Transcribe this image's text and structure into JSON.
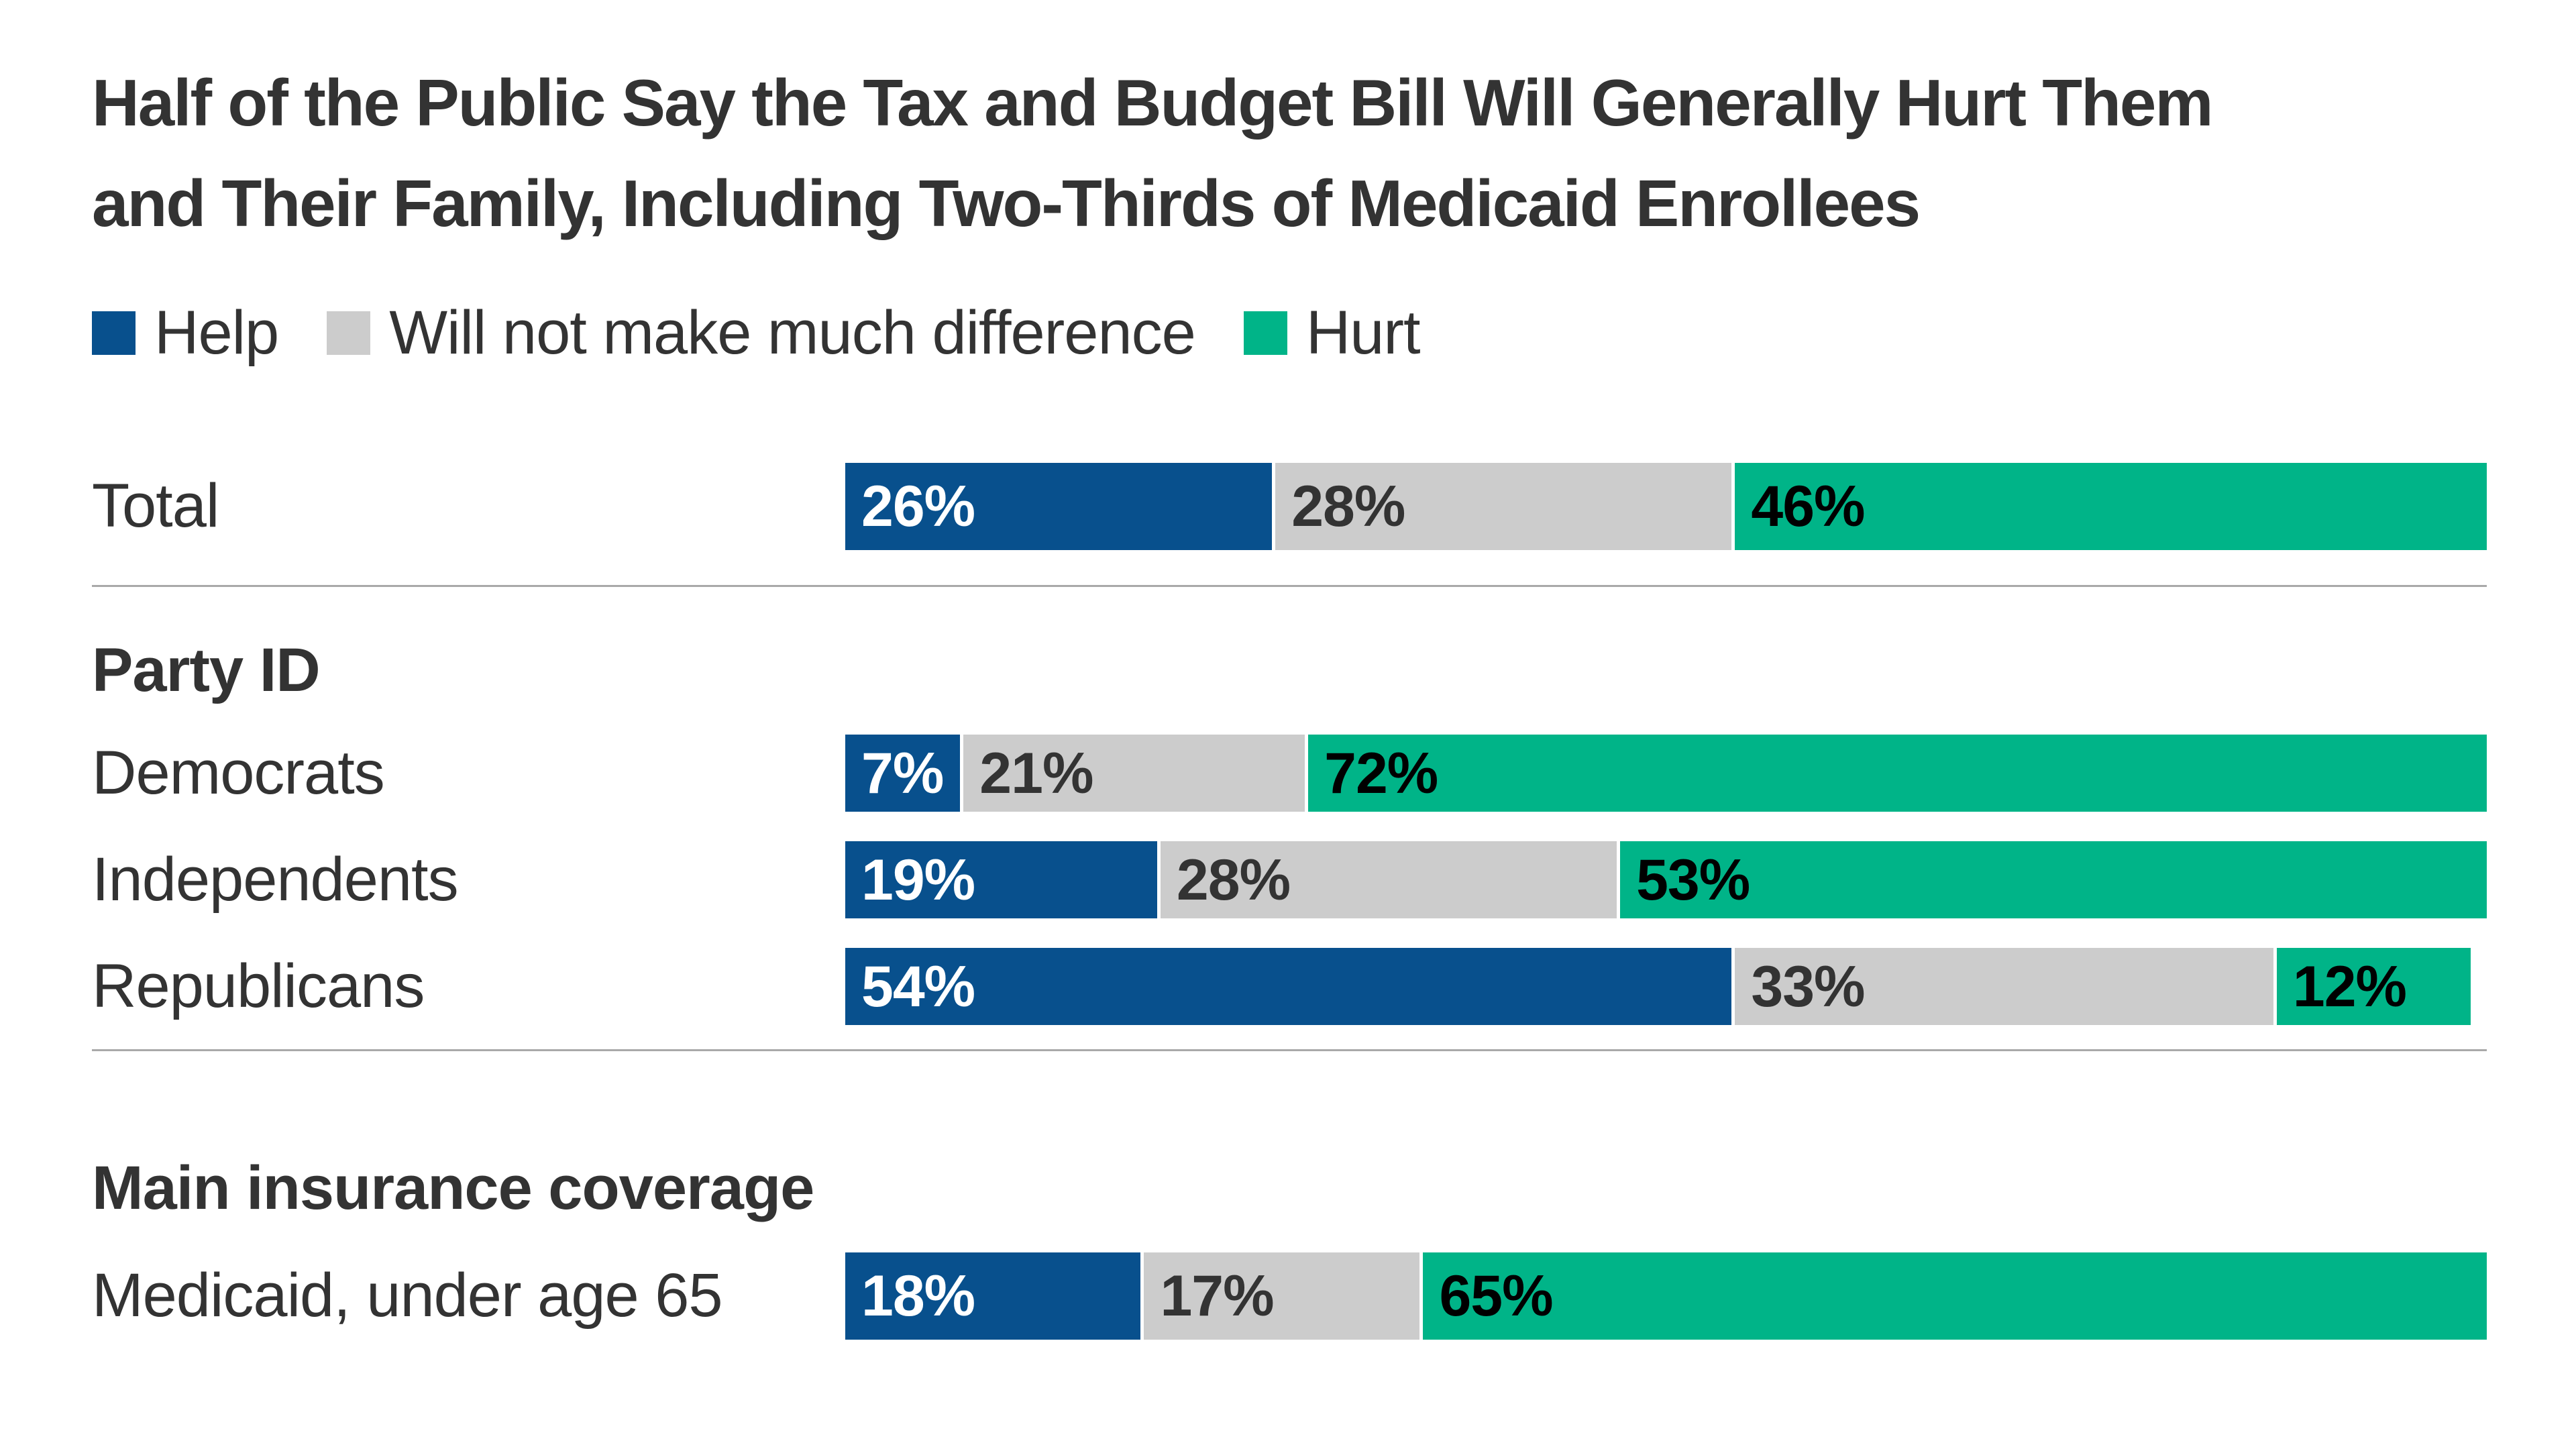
{
  "title": {
    "line1": "Half of the Public Say the Tax and Budget Bill Will Generally Hurt Them",
    "line2": "and Their Family, Including Two-Thirds of Medicaid Enrollees"
  },
  "legend": [
    {
      "label": "Help",
      "color": "#08508D"
    },
    {
      "label": "Will not make much difference",
      "color": "#CCCCCC"
    },
    {
      "label": "Hurt",
      "color": "#00B488"
    }
  ],
  "colors": {
    "help": "#08508D",
    "no_difference": "#CCCCCC",
    "hurt": "#00B488",
    "text": "#333333",
    "divider": "#A9A9A9",
    "label_on_help": "#FFFFFF",
    "label_on_no_difference": "#333333",
    "label_on_hurt": "#000000"
  },
  "chart_data": {
    "type": "bar",
    "orientation": "horizontal",
    "stacked": true,
    "title": "Half of the Public Say the Tax and Budget Bill Will Generally Hurt Them and Their Family, Including Two-Thirds of Medicaid Enrollees",
    "series_names": [
      "Help",
      "Will not make much difference",
      "Hurt"
    ],
    "value_suffix": "%",
    "xlim": [
      0,
      100
    ],
    "grid": false,
    "legend_position": "top",
    "groups": [
      {
        "header": null,
        "rows": [
          {
            "label": "Total",
            "values": [
              26,
              28,
              46
            ]
          }
        ]
      },
      {
        "header": "Party ID",
        "rows": [
          {
            "label": "Democrats",
            "values": [
              7,
              21,
              72
            ]
          },
          {
            "label": "Independents",
            "values": [
              19,
              28,
              53
            ]
          },
          {
            "label": "Republicans",
            "values": [
              54,
              33,
              12
            ]
          }
        ]
      },
      {
        "header": "Main insurance coverage",
        "rows": [
          {
            "label": "Medicaid, under age 65",
            "values": [
              18,
              17,
              65
            ]
          }
        ]
      }
    ]
  }
}
